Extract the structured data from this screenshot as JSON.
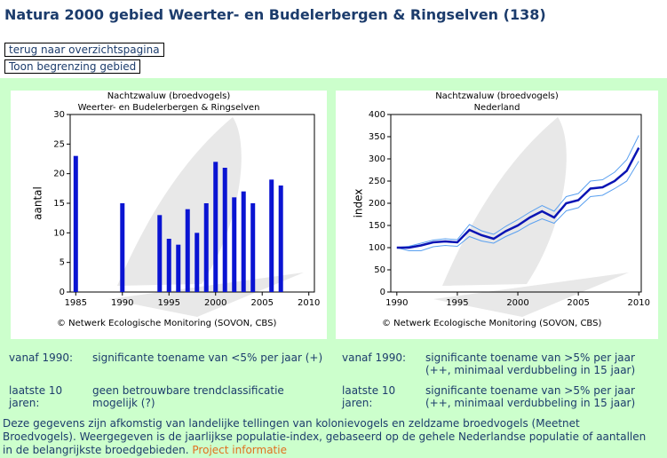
{
  "header": {
    "title": "Natura 2000 gebied Weerter- en Budelerbergen & Ringselven (138)"
  },
  "buttons": [
    "terug naar overzichtspagina",
    "Toon begrenzing gebied"
  ],
  "chart_data": [
    {
      "type": "bar",
      "title": "Nachtzwaluw (broedvogels)",
      "subtitle": "Weerter- en Budelerbergen & Ringselven",
      "y_label": "aantal",
      "source": "©  Netwerk Ecologische Monitoring (SOVON, CBS)",
      "x": [
        1985,
        1990,
        1994,
        1995,
        1996,
        1997,
        1998,
        1999,
        2000,
        2001,
        2002,
        2003,
        2004,
        2006,
        2007
      ],
      "values": [
        23,
        15,
        13,
        9,
        8,
        14,
        10,
        15,
        22,
        21,
        16,
        17,
        15,
        19,
        18
      ],
      "color": "#0a14d2",
      "xlim": [
        1984.4,
        2010.6
      ],
      "xticks": [
        1985,
        1990,
        1995,
        2000,
        2005,
        2010
      ],
      "ylim": [
        0,
        30
      ],
      "yticks": [
        0,
        5,
        10,
        15,
        20,
        25,
        30
      ]
    },
    {
      "type": "line",
      "title": "Nachtzwaluw (broedvogels)",
      "subtitle": "Nederland",
      "y_label": "index",
      "source": "©  Netwerk Ecologische Monitoring (SOVON, CBS)",
      "x": [
        1990,
        1991,
        1992,
        1993,
        1994,
        1995,
        1996,
        1997,
        1998,
        1999,
        2000,
        2001,
        2002,
        2003,
        2004,
        2005,
        2006,
        2007,
        2008,
        2009,
        2010
      ],
      "series": [
        {
          "color": "#5aa0f0",
          "values": [
            100,
            103,
            110,
            117,
            120,
            118,
            152,
            138,
            130,
            148,
            163,
            180,
            195,
            182,
            215,
            222,
            250,
            253,
            270,
            298,
            353
          ]
        },
        {
          "color": "#5aa0f0",
          "values": [
            100,
            93,
            93,
            102,
            105,
            103,
            125,
            115,
            110,
            125,
            137,
            153,
            165,
            155,
            183,
            190,
            215,
            218,
            233,
            250,
            295
          ]
        },
        {
          "color": "#0a14b4",
          "values": [
            100,
            100,
            105,
            112,
            114,
            112,
            140,
            128,
            120,
            137,
            150,
            168,
            182,
            168,
            200,
            207,
            233,
            236,
            250,
            273,
            325
          ]
        }
      ],
      "xlim": [
        1989.5,
        2010.2
      ],
      "xticks": [
        1990,
        1995,
        2000,
        2005,
        2010
      ],
      "ylim": [
        0,
        400
      ],
      "yticks": [
        0,
        50,
        100,
        150,
        200,
        250,
        300,
        350,
        400
      ]
    }
  ],
  "trends": [
    {
      "rows": [
        [
          "vanaf 1990:",
          "significante toename van <5% per jaar (+)"
        ],
        [
          "laatste 10 jaren:",
          "geen betrouwbare trendclassificatie mogelijk (?)"
        ]
      ]
    },
    {
      "rows": [
        [
          "vanaf 1990:",
          "significante toename van >5% per jaar (++, minimaal verdubbeling in 15 jaar)"
        ],
        [
          "laatste 10 jaren:",
          "significante toename van >5% per jaar (++, minimaal verdubbeling in 15 jaar)"
        ]
      ]
    }
  ],
  "footer": {
    "text": "Deze gegevens zijn afkomstig van landelijke tellingen van kolonievogels en zeldzame broedvogels (Meetnet Broedvogels). Weergegeven is de jaarlijkse populatie-index, gebaseerd op de gehele Nederlandse populatie of aantallen in de belangrijkste broedgebieden.",
    "link": "Project informatie"
  }
}
